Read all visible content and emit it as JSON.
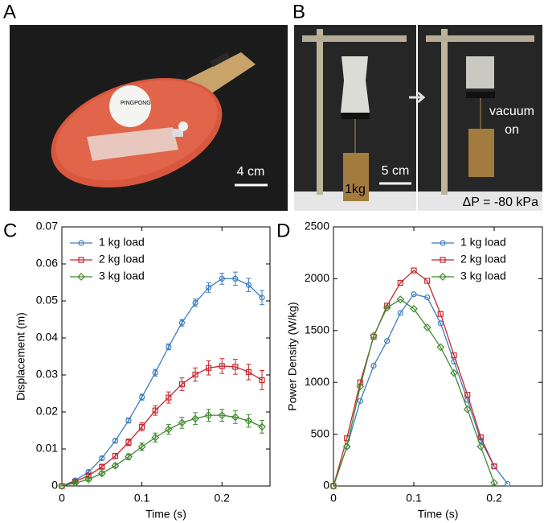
{
  "panel_labels": [
    "A",
    "B",
    "C",
    "D"
  ],
  "photos": {
    "A": {
      "scale_bar": "4 cm"
    },
    "B": {
      "scale_bar": "5 cm",
      "load": "1kg",
      "state": [
        "vacuum",
        "on"
      ],
      "pressure": "ΔP = -80 kPa"
    }
  },
  "chart_data": [
    {
      "type": "line",
      "xlabel": "Time (s)",
      "ylabel": "Displacement (m)",
      "xlim": [
        0,
        0.26
      ],
      "ylim": [
        0,
        0.07
      ],
      "xticks": [
        0,
        0.1,
        0.2
      ],
      "yticks": [
        0,
        0.01,
        0.02,
        0.03,
        0.04,
        0.05,
        0.06,
        0.07
      ],
      "legend": "upper left",
      "series": [
        {
          "name": "1 kg load",
          "color": "#3c7dbf",
          "marker": "circle",
          "x": [
            0,
            0.0167,
            0.0333,
            0.05,
            0.0667,
            0.0833,
            0.1,
            0.1167,
            0.1333,
            0.15,
            0.1667,
            0.1833,
            0.2,
            0.2167,
            0.2333,
            0.25
          ],
          "values": [
            0,
            0.0015,
            0.0038,
            0.0075,
            0.0122,
            0.0177,
            0.024,
            0.0306,
            0.0376,
            0.0441,
            0.0495,
            0.0536,
            0.056,
            0.056,
            0.0543,
            0.0509
          ],
          "errors": [
            0,
            0.0003,
            0.0004,
            0.0005,
            0.0006,
            0.0007,
            0.0008,
            0.0009,
            0.0008,
            0.0009,
            0.001,
            0.0013,
            0.0015,
            0.0018,
            0.0018,
            0.0019
          ]
        },
        {
          "name": "2 kg load",
          "color": "#c8252c",
          "marker": "square",
          "x": [
            0,
            0.0167,
            0.0333,
            0.05,
            0.0667,
            0.0833,
            0.1,
            0.1167,
            0.1333,
            0.15,
            0.1667,
            0.1833,
            0.2,
            0.2167,
            0.2333,
            0.25
          ],
          "values": [
            0,
            0.0012,
            0.0028,
            0.0052,
            0.0081,
            0.0118,
            0.016,
            0.0204,
            0.0239,
            0.0275,
            0.0301,
            0.0319,
            0.0324,
            0.0322,
            0.0308,
            0.0286
          ],
          "errors": [
            0,
            0.0003,
            0.0004,
            0.0005,
            0.0007,
            0.0009,
            0.0011,
            0.0013,
            0.0015,
            0.0017,
            0.0018,
            0.0019,
            0.002,
            0.002,
            0.0021,
            0.0026
          ]
        },
        {
          "name": "3 kg load",
          "color": "#3d8a2b",
          "marker": "diamond",
          "x": [
            0,
            0.0167,
            0.0333,
            0.05,
            0.0667,
            0.0833,
            0.1,
            0.1167,
            0.1333,
            0.15,
            0.1667,
            0.1833,
            0.2,
            0.2167,
            0.2333,
            0.25
          ],
          "values": [
            0,
            0.0008,
            0.0018,
            0.0034,
            0.0055,
            0.0079,
            0.0106,
            0.0131,
            0.0153,
            0.0171,
            0.0182,
            0.0191,
            0.0191,
            0.0186,
            0.0176,
            0.016
          ],
          "errors": [
            0,
            0.0003,
            0.0004,
            0.0005,
            0.0006,
            0.0008,
            0.001,
            0.0012,
            0.0013,
            0.0015,
            0.0016,
            0.0016,
            0.0016,
            0.0017,
            0.0017,
            0.0017
          ]
        }
      ]
    },
    {
      "type": "line",
      "xlabel": "Time (s)",
      "ylabel": "Power Density (W/kg)",
      "xlim": [
        0,
        0.26
      ],
      "ylim": [
        0,
        2500
      ],
      "xticks": [
        0,
        0.1,
        0.2
      ],
      "yticks": [
        0,
        500,
        1000,
        1500,
        2000,
        2500
      ],
      "legend": "upper right",
      "series": [
        {
          "name": "1 kg load",
          "color": "#3c7dbf",
          "marker": "circle",
          "x": [
            0,
            0.0167,
            0.0333,
            0.05,
            0.0667,
            0.0833,
            0.1,
            0.1167,
            0.1333,
            0.15,
            0.1667,
            0.1833,
            0.2,
            0.2167
          ],
          "values": [
            0,
            380,
            820,
            1160,
            1400,
            1670,
            1850,
            1820,
            1570,
            1200,
            830,
            440,
            190,
            20
          ]
        },
        {
          "name": "2 kg load",
          "color": "#c8252c",
          "marker": "square",
          "x": [
            0,
            0.0167,
            0.0333,
            0.05,
            0.0667,
            0.0833,
            0.1,
            0.1167,
            0.1333,
            0.15,
            0.1667,
            0.1833,
            0.2
          ],
          "values": [
            0,
            460,
            1000,
            1440,
            1740,
            1960,
            2080,
            1980,
            1660,
            1260,
            880,
            470,
            190
          ]
        },
        {
          "name": "3 kg load",
          "color": "#3d8a2b",
          "marker": "diamond",
          "x": [
            0,
            0.0167,
            0.0333,
            0.05,
            0.0667,
            0.0833,
            0.1,
            0.1167,
            0.1333,
            0.15,
            0.1667,
            0.1833,
            0.2
          ],
          "values": [
            0,
            380,
            960,
            1450,
            1720,
            1800,
            1710,
            1530,
            1340,
            1090,
            740,
            380,
            30
          ]
        }
      ]
    }
  ]
}
